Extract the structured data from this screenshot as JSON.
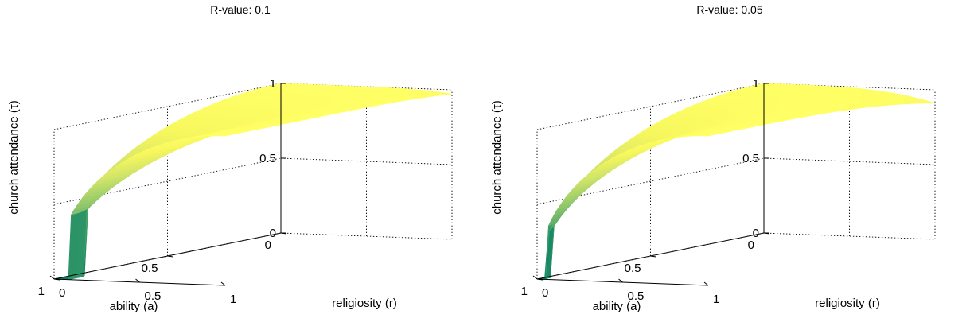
{
  "chart_data": [
    {
      "type": "surface",
      "title": "R-value: 0.1",
      "r_value": 0.1,
      "xlabel": "religiosity (r)",
      "ylabel": "ability (a)",
      "zlabel": "church attendance (τ)",
      "xlim": [
        0,
        1
      ],
      "ylim": [
        0,
        1
      ],
      "zlim": [
        0,
        1
      ],
      "xticks": [
        "0",
        "0.5",
        "1"
      ],
      "yticks": [
        "0",
        "0.5",
        "1"
      ],
      "zticks": [
        "0",
        "0.5",
        "1"
      ],
      "grid": true,
      "shape_exponent": 3.3,
      "colormap": [
        "#007a64",
        "#1a8a66",
        "#54a86a",
        "#95c96c",
        "#cfe46a",
        "#f6f65e",
        "#ffff66"
      ]
    },
    {
      "type": "surface",
      "title": "R-value: 0.05",
      "r_value": 0.05,
      "xlabel": "religiosity (r)",
      "ylabel": "ability (a)",
      "zlabel": "church attendance (τ)",
      "xlim": [
        0,
        1
      ],
      "ylim": [
        0,
        1
      ],
      "zlim": [
        0,
        1
      ],
      "xticks": [
        "0",
        "0.5",
        "1"
      ],
      "yticks": [
        "0",
        "0.5",
        "1"
      ],
      "zticks": [
        "0",
        "0.5",
        "1"
      ],
      "grid": true,
      "shape_exponent": 2.0,
      "colormap": [
        "#007a64",
        "#1a8a66",
        "#54a86a",
        "#95c96c",
        "#cfe46a",
        "#f6f65e",
        "#ffff66"
      ]
    }
  ]
}
